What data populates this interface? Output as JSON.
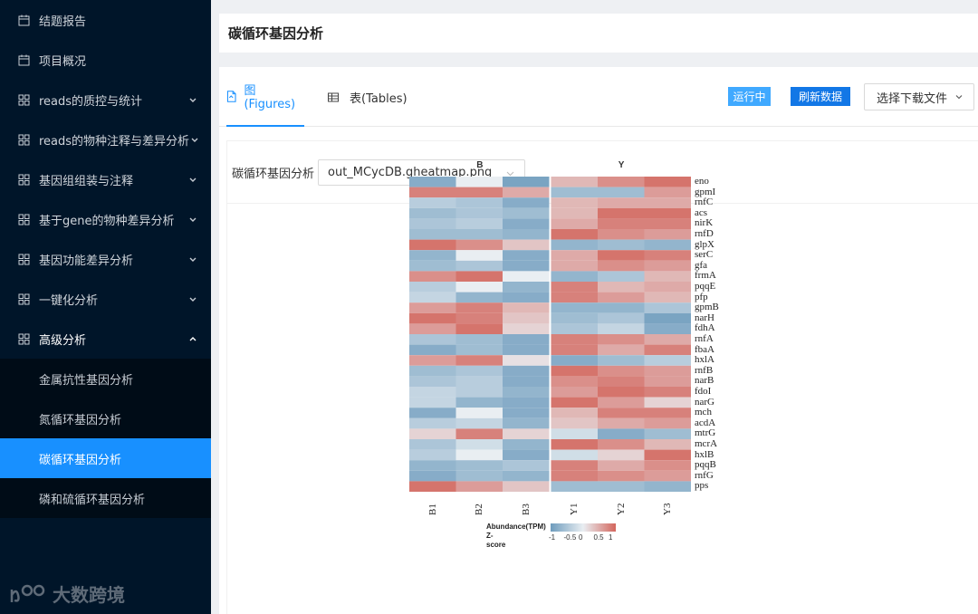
{
  "sidebar": {
    "items": [
      {
        "label": "结题报告",
        "icon": "calendar-icon",
        "expandable": false
      },
      {
        "label": "项目概况",
        "icon": "calendar-icon",
        "expandable": false
      },
      {
        "label": "reads的质控与统计",
        "icon": "grid-icon",
        "expandable": true
      },
      {
        "label": "reads的物种注释与差异分析",
        "icon": "grid-icon",
        "expandable": true
      },
      {
        "label": "基因组组装与注释",
        "icon": "grid-icon",
        "expandable": true
      },
      {
        "label": "基于gene的物种差异分析",
        "icon": "grid-icon",
        "expandable": true
      },
      {
        "label": "基因功能差异分析",
        "icon": "grid-icon",
        "expandable": true
      },
      {
        "label": "一键化分析",
        "icon": "grid-icon",
        "expandable": true
      },
      {
        "label": "高级分析",
        "icon": "grid-icon",
        "expandable": true,
        "open": true
      }
    ],
    "submenu": [
      {
        "label": "金属抗性基因分析"
      },
      {
        "label": "氮循环基因分析"
      },
      {
        "label": "碳循环基因分析",
        "active": true
      },
      {
        "label": "磷和硫循环基因分析"
      }
    ],
    "logo_text": "大数跨境"
  },
  "header": {
    "title": "碳循环基因分析"
  },
  "tabs": [
    {
      "label": "图(Figures)",
      "active": true,
      "icon": "file-icon"
    },
    {
      "label": "表(Tables)",
      "active": false,
      "icon": "table-icon"
    }
  ],
  "actions": {
    "running_label": "运行中",
    "refresh_label": "刷新数据",
    "download_label": "选择下载文件"
  },
  "file_selector": {
    "label": "碳循环基因分析",
    "value": "out_MCycDB.gheatmap.png"
  },
  "colors": {
    "sidebar_bg": "#001529",
    "accent": "#1890ff",
    "heat_low": "#6e9cbd",
    "heat_mid": "#e9eef2",
    "heat_high": "#d3665d"
  },
  "chart_data": {
    "type": "heatmap",
    "groups": [
      "B",
      "Y"
    ],
    "columns": [
      "B1",
      "B2",
      "B3",
      "Y1",
      "Y2",
      "Y3"
    ],
    "rows": [
      "eno",
      "gpmI",
      "rnfC",
      "acs",
      "nirK",
      "rnfD",
      "glpX",
      "serC",
      "gfa",
      "frmA",
      "pqqE",
      "pfp",
      "gpmB",
      "narH",
      "fdhA",
      "rnfA",
      "fbaA",
      "hxlA",
      "rnfB",
      "narB",
      "fdoI",
      "narG",
      "mch",
      "acdA",
      "mtrG",
      "mcrA",
      "hxlB",
      "pqqB",
      "rnfG",
      "pps"
    ],
    "values": [
      [
        -0.8,
        0.0,
        -0.9,
        0.4,
        0.7,
        0.9
      ],
      [
        0.8,
        0.8,
        0.5,
        -0.6,
        -0.6,
        0.6
      ],
      [
        -0.4,
        -0.5,
        -0.8,
        0.4,
        0.5,
        0.5
      ],
      [
        -0.6,
        -0.5,
        -0.6,
        0.4,
        0.9,
        0.9
      ],
      [
        -0.5,
        -0.4,
        -0.8,
        0.5,
        0.8,
        0.8
      ],
      [
        -0.6,
        -0.6,
        -0.7,
        0.9,
        0.7,
        0.6
      ],
      [
        0.9,
        0.7,
        0.3,
        -0.7,
        -0.6,
        -0.7
      ],
      [
        -0.7,
        0.0,
        -0.8,
        0.5,
        0.9,
        0.8
      ],
      [
        -0.6,
        -0.5,
        -0.8,
        0.5,
        0.7,
        0.6
      ],
      [
        0.7,
        0.9,
        0.0,
        -0.7,
        -0.5,
        0.4
      ],
      [
        -0.4,
        0.0,
        -0.7,
        0.8,
        0.4,
        0.5
      ],
      [
        -0.3,
        -0.7,
        -0.8,
        0.8,
        0.6,
        0.4
      ],
      [
        0.6,
        0.8,
        0.4,
        -0.7,
        -0.7,
        -0.5
      ],
      [
        0.9,
        0.8,
        0.3,
        -0.6,
        -0.5,
        -0.9
      ],
      [
        0.6,
        0.9,
        0.2,
        -0.5,
        -0.3,
        -0.8
      ],
      [
        -0.5,
        -0.6,
        -0.8,
        0.8,
        0.7,
        0.5
      ],
      [
        -0.8,
        -0.6,
        -0.8,
        0.8,
        0.5,
        0.8
      ],
      [
        0.6,
        0.8,
        0.1,
        -0.8,
        -0.6,
        -0.4
      ],
      [
        -0.6,
        -0.5,
        -0.8,
        0.9,
        0.7,
        0.6
      ],
      [
        -0.5,
        -0.4,
        -0.8,
        0.7,
        0.8,
        0.6
      ],
      [
        -0.3,
        -0.4,
        -0.7,
        0.6,
        0.9,
        0.8
      ],
      [
        -0.3,
        -0.7,
        -0.8,
        0.9,
        0.6,
        0.2
      ],
      [
        -0.8,
        0.0,
        -0.8,
        0.4,
        0.8,
        0.8
      ],
      [
        -0.4,
        -0.3,
        -0.7,
        0.3,
        0.5,
        0.6
      ],
      [
        0.2,
        0.8,
        0.2,
        -0.2,
        -0.8,
        -0.6
      ],
      [
        -0.5,
        -0.2,
        -0.7,
        0.9,
        0.7,
        0.4
      ],
      [
        -0.4,
        0.0,
        -0.8,
        -0.2,
        0.2,
        0.9
      ],
      [
        -0.7,
        -0.6,
        -0.5,
        0.8,
        0.5,
        0.7
      ],
      [
        -0.8,
        -0.6,
        -0.7,
        0.8,
        0.7,
        0.6
      ],
      [
        0.9,
        0.6,
        0.3,
        -0.6,
        -0.6,
        -0.7
      ]
    ],
    "legend_title": "Abundance(TPM)",
    "legend_subtitle": "Z-score",
    "legend_ticks": [
      "-1",
      "-0.5",
      "0",
      "0.5",
      "1"
    ],
    "value_range": [
      -1,
      1
    ]
  }
}
